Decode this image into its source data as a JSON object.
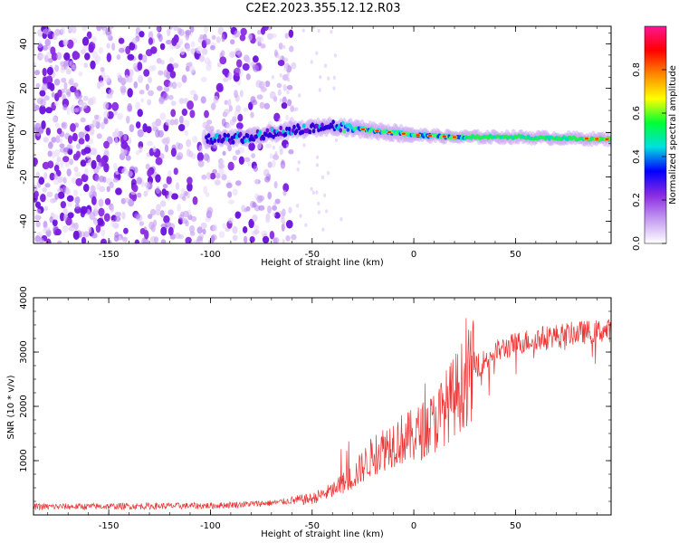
{
  "title": "C2E2.2023.355.12.12.R03",
  "chart_data": [
    {
      "type": "heatmap",
      "xlabel": "Height of straight line (km)",
      "ylabel": "Frequency (Hz)",
      "xlim": [
        -187,
        97
      ],
      "ylim": [
        -50,
        48
      ],
      "x_ticks": [
        -150,
        -100,
        -50,
        0,
        50
      ],
      "y_ticks": [
        -40,
        -20,
        0,
        20,
        40
      ],
      "colorbar": {
        "label": "Normalized spectral amplitude",
        "range": [
          0,
          1
        ],
        "ticks": [
          "0.0",
          "0.2",
          "0.4",
          "0.6",
          "0.8"
        ],
        "tick_values": [
          0.0,
          0.2,
          0.4,
          0.6,
          0.8
        ],
        "colors": [
          "#ffffff",
          "#c59cf2",
          "#8a2be2",
          "#0000ff",
          "#00e0e0",
          "#00ff33",
          "#ffff00",
          "#ff8800",
          "#ff0000",
          "#ff1493"
        ]
      },
      "features": {
        "noise_region_x": [
          -187,
          -65
        ],
        "signal_track": [
          {
            "x": -100,
            "f": -3
          },
          {
            "x": -80,
            "f": -2
          },
          {
            "x": -60,
            "f": 1
          },
          {
            "x": -40,
            "f": 3
          },
          {
            "x": -20,
            "f": 1
          },
          {
            "x": 0,
            "f": -1
          },
          {
            "x": 20,
            "f": -2
          },
          {
            "x": 50,
            "f": -2
          },
          {
            "x": 97,
            "f": -3
          }
        ]
      }
    },
    {
      "type": "line",
      "xlabel": "Height of straight line (km)",
      "ylabel": "SNR (10 * v/v)",
      "xlim": [
        -187,
        97
      ],
      "ylim": [
        0,
        4000
      ],
      "x_ticks": [
        -150,
        -100,
        -50,
        0,
        50
      ],
      "y_ticks": [
        1000,
        2000,
        3000,
        4000
      ],
      "series_color": "#ee3333",
      "trend": [
        {
          "x": -187,
          "y": 150
        },
        {
          "x": -100,
          "y": 170
        },
        {
          "x": -70,
          "y": 220
        },
        {
          "x": -50,
          "y": 300
        },
        {
          "x": -40,
          "y": 450
        },
        {
          "x": -30,
          "y": 700
        },
        {
          "x": -20,
          "y": 1100
        },
        {
          "x": -10,
          "y": 1350
        },
        {
          "x": 0,
          "y": 1450
        },
        {
          "x": 10,
          "y": 1700
        },
        {
          "x": 20,
          "y": 2200
        },
        {
          "x": 30,
          "y": 2700
        },
        {
          "x": 40,
          "y": 3000
        },
        {
          "x": 50,
          "y": 3150
        },
        {
          "x": 60,
          "y": 3250
        },
        {
          "x": 70,
          "y": 3300
        },
        {
          "x": 80,
          "y": 3350
        },
        {
          "x": 97,
          "y": 3400
        }
      ]
    }
  ]
}
